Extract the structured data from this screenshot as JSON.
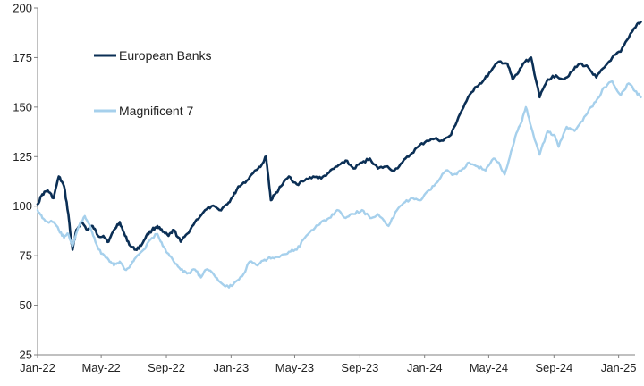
{
  "chart_data": {
    "type": "line",
    "title": "",
    "xlabel": "",
    "ylabel": "",
    "ylim": [
      25,
      200
    ],
    "yticks": [
      25,
      50,
      75,
      100,
      125,
      150,
      175,
      200
    ],
    "x_range": [
      "2022-01",
      "2025-02"
    ],
    "xticks": [
      {
        "date": "2022-01",
        "label": "Jan-22"
      },
      {
        "date": "2022-05",
        "label": "May-22"
      },
      {
        "date": "2022-09",
        "label": "Sep-22"
      },
      {
        "date": "2023-01",
        "label": "Jan-23"
      },
      {
        "date": "2023-05",
        "label": "May-23"
      },
      {
        "date": "2023-09",
        "label": "Sep-23"
      },
      {
        "date": "2024-01",
        "label": "Jan-24"
      },
      {
        "date": "2024-05",
        "label": "May-24"
      },
      {
        "date": "2024-09",
        "label": "Sep-24"
      },
      {
        "date": "2025-01",
        "label": "Jan-25"
      }
    ],
    "grid": false,
    "legend_position": "top-left",
    "series": [
      {
        "name": "European Banks",
        "color": "#0b2f55",
        "points": [
          [
            "2022-01-01",
            101
          ],
          [
            "2022-01-10",
            106
          ],
          [
            "2022-01-20",
            108
          ],
          [
            "2022-01-31",
            104
          ],
          [
            "2022-02-10",
            115
          ],
          [
            "2022-02-20",
            110
          ],
          [
            "2022-02-28",
            96
          ],
          [
            "2022-03-05",
            83
          ],
          [
            "2022-03-08",
            78
          ],
          [
            "2022-03-15",
            88
          ],
          [
            "2022-03-25",
            92
          ],
          [
            "2022-04-05",
            88
          ],
          [
            "2022-04-15",
            90
          ],
          [
            "2022-04-25",
            85
          ],
          [
            "2022-05-05",
            85
          ],
          [
            "2022-05-15",
            82
          ],
          [
            "2022-05-25",
            88
          ],
          [
            "2022-06-05",
            92
          ],
          [
            "2022-06-15",
            85
          ],
          [
            "2022-06-25",
            80
          ],
          [
            "2022-07-05",
            78
          ],
          [
            "2022-07-15",
            80
          ],
          [
            "2022-07-25",
            85
          ],
          [
            "2022-08-05",
            88
          ],
          [
            "2022-08-15",
            90
          ],
          [
            "2022-08-25",
            87
          ],
          [
            "2022-09-05",
            85
          ],
          [
            "2022-09-15",
            88
          ],
          [
            "2022-09-28",
            82
          ],
          [
            "2022-10-10",
            86
          ],
          [
            "2022-10-25",
            92
          ],
          [
            "2022-11-10",
            97
          ],
          [
            "2022-11-25",
            100
          ],
          [
            "2022-12-10",
            98
          ],
          [
            "2022-12-25",
            101
          ],
          [
            "2023-01-05",
            105
          ],
          [
            "2023-01-15",
            110
          ],
          [
            "2023-01-31",
            113
          ],
          [
            "2023-02-15",
            118
          ],
          [
            "2023-02-28",
            121
          ],
          [
            "2023-03-08",
            125
          ],
          [
            "2023-03-13",
            113
          ],
          [
            "2023-03-17",
            103
          ],
          [
            "2023-03-25",
            106
          ],
          [
            "2023-04-05",
            110
          ],
          [
            "2023-04-20",
            115
          ],
          [
            "2023-05-05",
            111
          ],
          [
            "2023-05-20",
            113
          ],
          [
            "2023-06-05",
            115
          ],
          [
            "2023-06-20",
            114
          ],
          [
            "2023-07-05",
            117
          ],
          [
            "2023-07-20",
            120
          ],
          [
            "2023-08-05",
            123
          ],
          [
            "2023-08-20",
            119
          ],
          [
            "2023-09-05",
            122
          ],
          [
            "2023-09-20",
            124
          ],
          [
            "2023-10-05",
            119
          ],
          [
            "2023-10-20",
            120
          ],
          [
            "2023-11-05",
            118
          ],
          [
            "2023-11-20",
            122
          ],
          [
            "2023-12-05",
            126
          ],
          [
            "2023-12-20",
            130
          ],
          [
            "2024-01-05",
            133
          ],
          [
            "2024-01-20",
            134
          ],
          [
            "2024-02-05",
            133
          ],
          [
            "2024-02-20",
            136
          ],
          [
            "2024-03-05",
            145
          ],
          [
            "2024-03-20",
            153
          ],
          [
            "2024-04-05",
            160
          ],
          [
            "2024-04-20",
            163
          ],
          [
            "2024-05-05",
            168
          ],
          [
            "2024-05-20",
            173
          ],
          [
            "2024-06-05",
            172
          ],
          [
            "2024-06-15",
            164
          ],
          [
            "2024-06-25",
            167
          ],
          [
            "2024-07-05",
            172
          ],
          [
            "2024-07-20",
            175
          ],
          [
            "2024-08-05",
            155
          ],
          [
            "2024-08-20",
            164
          ],
          [
            "2024-09-05",
            166
          ],
          [
            "2024-09-20",
            164
          ],
          [
            "2024-10-05",
            168
          ],
          [
            "2024-10-20",
            172
          ],
          [
            "2024-11-05",
            170
          ],
          [
            "2024-11-20",
            165
          ],
          [
            "2024-12-05",
            170
          ],
          [
            "2024-12-20",
            175
          ],
          [
            "2025-01-05",
            178
          ],
          [
            "2025-01-20",
            185
          ],
          [
            "2025-02-05",
            192
          ],
          [
            "2025-02-12",
            193
          ]
        ]
      },
      {
        "name": "Magnificent 7",
        "color": "#a6d0ec",
        "points": [
          [
            "2022-01-01",
            98
          ],
          [
            "2022-01-10",
            94
          ],
          [
            "2022-01-20",
            92
          ],
          [
            "2022-01-31",
            92
          ],
          [
            "2022-02-10",
            88
          ],
          [
            "2022-02-20",
            84
          ],
          [
            "2022-02-28",
            86
          ],
          [
            "2022-03-08",
            80
          ],
          [
            "2022-03-20",
            90
          ],
          [
            "2022-03-31",
            95
          ],
          [
            "2022-04-10",
            90
          ],
          [
            "2022-04-20",
            82
          ],
          [
            "2022-05-01",
            76
          ],
          [
            "2022-05-15",
            73
          ],
          [
            "2022-05-25",
            70
          ],
          [
            "2022-06-05",
            72
          ],
          [
            "2022-06-15",
            68
          ],
          [
            "2022-06-25",
            70
          ],
          [
            "2022-07-05",
            74
          ],
          [
            "2022-07-20",
            78
          ],
          [
            "2022-08-05",
            84
          ],
          [
            "2022-08-15",
            86
          ],
          [
            "2022-08-25",
            80
          ],
          [
            "2022-09-05",
            76
          ],
          [
            "2022-09-15",
            72
          ],
          [
            "2022-09-28",
            68
          ],
          [
            "2022-10-10",
            66
          ],
          [
            "2022-10-25",
            68
          ],
          [
            "2022-11-05",
            64
          ],
          [
            "2022-11-15",
            68
          ],
          [
            "2022-11-28",
            66
          ],
          [
            "2022-12-10",
            62
          ],
          [
            "2022-12-28",
            59
          ],
          [
            "2023-01-10",
            62
          ],
          [
            "2023-01-25",
            66
          ],
          [
            "2023-02-05",
            72
          ],
          [
            "2023-02-20",
            70
          ],
          [
            "2023-03-05",
            73
          ],
          [
            "2023-03-20",
            74
          ],
          [
            "2023-04-05",
            75
          ],
          [
            "2023-04-20",
            77
          ],
          [
            "2023-05-05",
            78
          ],
          [
            "2023-05-20",
            84
          ],
          [
            "2023-06-05",
            88
          ],
          [
            "2023-06-20",
            92
          ],
          [
            "2023-07-05",
            94
          ],
          [
            "2023-07-20",
            98
          ],
          [
            "2023-08-05",
            94
          ],
          [
            "2023-08-20",
            96
          ],
          [
            "2023-09-05",
            98
          ],
          [
            "2023-09-20",
            94
          ],
          [
            "2023-10-05",
            96
          ],
          [
            "2023-10-25",
            90
          ],
          [
            "2023-11-10",
            98
          ],
          [
            "2023-11-25",
            102
          ],
          [
            "2023-12-10",
            104
          ],
          [
            "2023-12-25",
            103
          ],
          [
            "2024-01-10",
            108
          ],
          [
            "2024-01-25",
            112
          ],
          [
            "2024-02-10",
            118
          ],
          [
            "2024-02-25",
            116
          ],
          [
            "2024-03-10",
            118
          ],
          [
            "2024-03-25",
            122
          ],
          [
            "2024-04-10",
            120
          ],
          [
            "2024-04-25",
            118
          ],
          [
            "2024-05-10",
            124
          ],
          [
            "2024-05-20",
            122
          ],
          [
            "2024-05-31",
            116
          ],
          [
            "2024-06-10",
            125
          ],
          [
            "2024-06-20",
            135
          ],
          [
            "2024-07-01",
            142
          ],
          [
            "2024-07-10",
            150
          ],
          [
            "2024-07-20",
            140
          ],
          [
            "2024-08-05",
            126
          ],
          [
            "2024-08-20",
            138
          ],
          [
            "2024-09-01",
            136
          ],
          [
            "2024-09-10",
            130
          ],
          [
            "2024-09-25",
            140
          ],
          [
            "2024-10-10",
            138
          ],
          [
            "2024-10-25",
            143
          ],
          [
            "2024-11-10",
            150
          ],
          [
            "2024-11-25",
            155
          ],
          [
            "2024-12-05",
            160
          ],
          [
            "2024-12-20",
            163
          ],
          [
            "2025-01-05",
            156
          ],
          [
            "2025-01-20",
            162
          ],
          [
            "2025-02-01",
            158
          ],
          [
            "2025-02-12",
            155
          ]
        ]
      }
    ]
  }
}
